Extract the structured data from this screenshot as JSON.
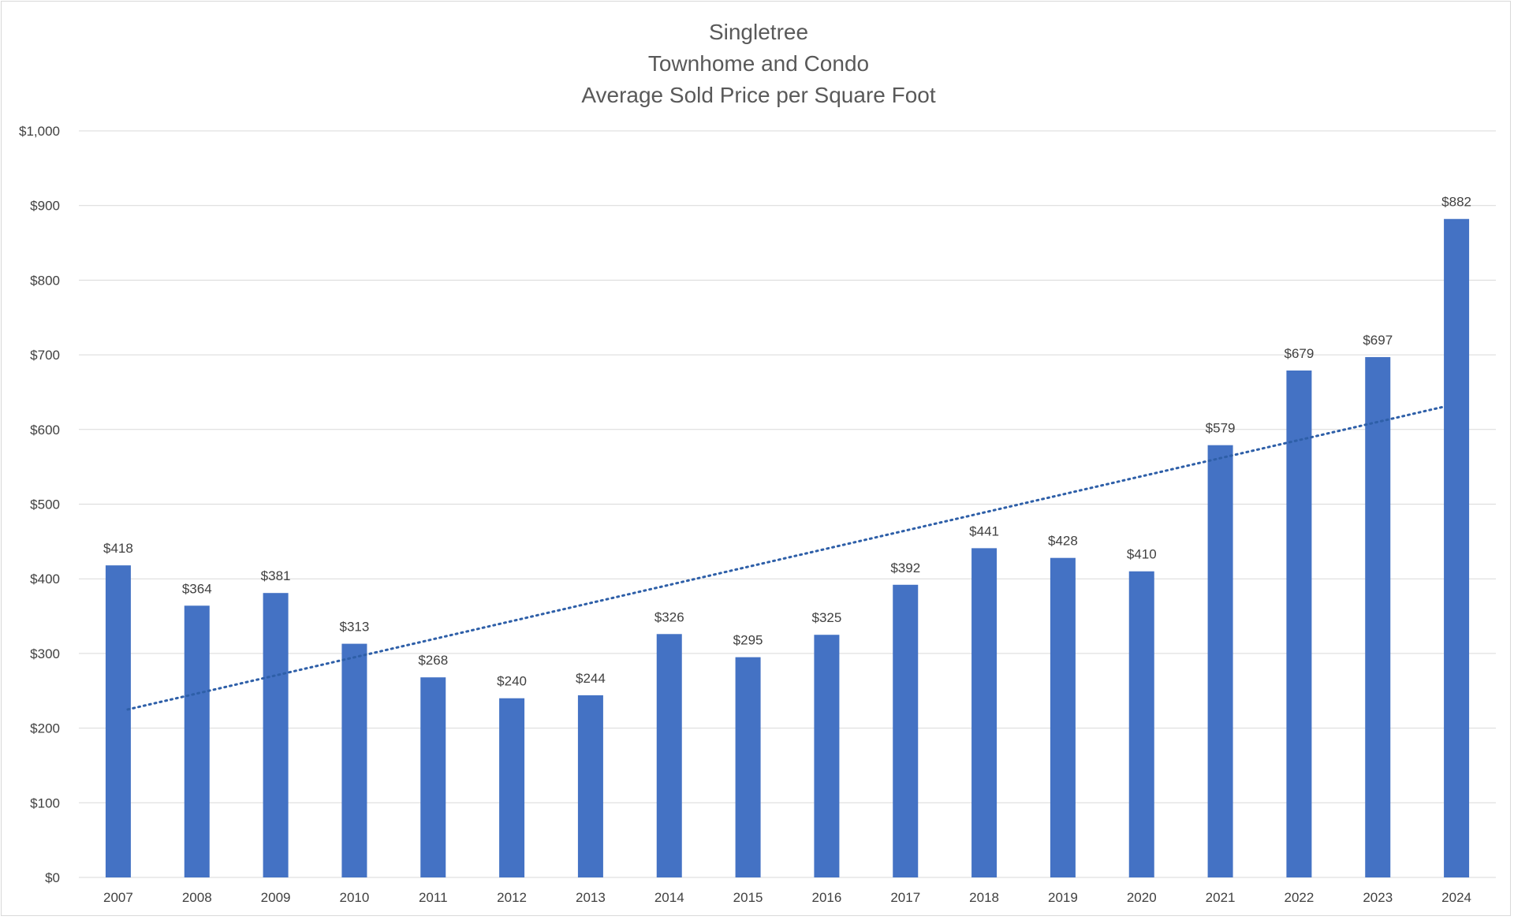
{
  "chart_data": {
    "type": "bar",
    "title_lines": [
      "Singletree",
      "Townhome and Condo",
      "Average Sold Price per Square Foot"
    ],
    "categories": [
      "2007",
      "2008",
      "2009",
      "2010",
      "2011",
      "2012",
      "2013",
      "2014",
      "2015",
      "2016",
      "2017",
      "2018",
      "2019",
      "2020",
      "2021",
      "2022",
      "2023",
      "2024"
    ],
    "values": [
      418,
      364,
      381,
      313,
      268,
      240,
      244,
      326,
      295,
      325,
      392,
      441,
      428,
      410,
      579,
      679,
      697,
      882
    ],
    "data_labels": [
      "$418",
      "$364",
      "$381",
      "$313",
      "$268",
      "$240",
      "$244",
      "$326",
      "$295",
      "$325",
      "$392",
      "$441",
      "$428",
      "$410",
      "$579",
      "$679",
      "$697",
      "$882"
    ],
    "ylim": [
      0,
      1000
    ],
    "y_ticks": [
      0,
      100,
      200,
      300,
      400,
      500,
      600,
      700,
      800,
      900,
      1000
    ],
    "y_tick_labels": [
      "$0",
      "$100",
      "$200",
      "$300",
      "$400",
      "$500",
      "$600",
      "$700",
      "$800",
      "$900",
      "$1,000"
    ],
    "xlabel": "",
    "ylabel": "",
    "grid": true,
    "legend": "none",
    "trendline": {
      "type": "linear",
      "style": "dotted",
      "start_value": 225,
      "end_value": 630
    },
    "colors": {
      "bar": "#4472C4",
      "trendline": "#2E5FA8",
      "grid": "#d9d9d9",
      "text": "#404040",
      "title": "#595959"
    }
  }
}
